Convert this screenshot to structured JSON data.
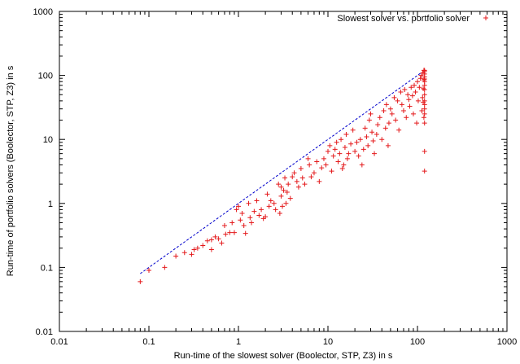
{
  "chart_data": {
    "type": "scatter",
    "title": "",
    "xlabel": "Run-time of the slowest solver (Boolector, STP, Z3) in s",
    "ylabel": "Run-time of portfolio solvers (Boolector, STP, Z3) in s",
    "xscale": "log",
    "yscale": "log",
    "xlim": [
      0.01,
      1000
    ],
    "ylim": [
      0.01,
      1000
    ],
    "x_ticks": [
      "0.01",
      "0.1",
      "1",
      "10",
      "100",
      "1000"
    ],
    "y_ticks": [
      "0.01",
      "0.1",
      "1",
      "10",
      "100",
      "1000"
    ],
    "grid": false,
    "legend": {
      "position": "top-right",
      "entries": [
        "Slowest solver vs. portfolio solver"
      ]
    },
    "colors": {
      "points": "#e41a1c",
      "reference_line": "#0000cc"
    },
    "reference_line": {
      "style": "dashed",
      "from": [
        0.08,
        0.08
      ],
      "to": [
        110,
        110
      ]
    },
    "series": [
      {
        "name": "Slowest solver vs. portfolio solver",
        "marker": "+",
        "points": [
          [
            0.08,
            0.06
          ],
          [
            0.1,
            0.09
          ],
          [
            0.15,
            0.1
          ],
          [
            0.2,
            0.15
          ],
          [
            0.25,
            0.17
          ],
          [
            0.3,
            0.16
          ],
          [
            0.32,
            0.19
          ],
          [
            0.35,
            0.2
          ],
          [
            0.4,
            0.22
          ],
          [
            0.45,
            0.26
          ],
          [
            0.5,
            0.19
          ],
          [
            0.5,
            0.27
          ],
          [
            0.55,
            0.3
          ],
          [
            0.6,
            0.28
          ],
          [
            0.65,
            0.24
          ],
          [
            0.7,
            0.45
          ],
          [
            0.72,
            0.33
          ],
          [
            0.8,
            0.35
          ],
          [
            0.85,
            0.5
          ],
          [
            0.9,
            0.35
          ],
          [
            0.95,
            0.8
          ],
          [
            1.0,
            0.9
          ],
          [
            1.05,
            0.55
          ],
          [
            1.1,
            0.7
          ],
          [
            1.15,
            0.45
          ],
          [
            1.2,
            0.34
          ],
          [
            1.3,
            1.0
          ],
          [
            1.35,
            0.6
          ],
          [
            1.4,
            0.5
          ],
          [
            1.5,
            0.75
          ],
          [
            1.6,
            1.1
          ],
          [
            1.7,
            0.65
          ],
          [
            1.8,
            0.8
          ],
          [
            1.9,
            0.58
          ],
          [
            2.0,
            0.62
          ],
          [
            2.1,
            1.4
          ],
          [
            2.2,
            0.9
          ],
          [
            2.3,
            1.1
          ],
          [
            2.5,
            1.0
          ],
          [
            2.6,
            0.8
          ],
          [
            2.8,
            2.0
          ],
          [
            2.9,
            0.7
          ],
          [
            3.0,
            1.3
          ],
          [
            3.0,
            1.8
          ],
          [
            3.1,
            0.9
          ],
          [
            3.2,
            1.6
          ],
          [
            3.3,
            2.5
          ],
          [
            3.4,
            1.0
          ],
          [
            3.5,
            1.5
          ],
          [
            3.6,
            2.0
          ],
          [
            3.8,
            1.2
          ],
          [
            4.0,
            2.6
          ],
          [
            4.2,
            3.0
          ],
          [
            4.5,
            2.2
          ],
          [
            4.7,
            1.8
          ],
          [
            5.0,
            3.5
          ],
          [
            5.2,
            2.5
          ],
          [
            5.5,
            2.0
          ],
          [
            6.0,
            5.0
          ],
          [
            6.2,
            4.0
          ],
          [
            6.5,
            2.6
          ],
          [
            7.0,
            3.0
          ],
          [
            7.5,
            4.5
          ],
          [
            8.0,
            2.2
          ],
          [
            8.5,
            3.6
          ],
          [
            9.0,
            5.0
          ],
          [
            9.5,
            4.0
          ],
          [
            10,
            6.5
          ],
          [
            10.5,
            8.0
          ],
          [
            11,
            3.2
          ],
          [
            11.5,
            5.5
          ],
          [
            12,
            7.0
          ],
          [
            12.5,
            9.0
          ],
          [
            13,
            4.5
          ],
          [
            13.5,
            6.0
          ],
          [
            14,
            10.0
          ],
          [
            14.5,
            3.5
          ],
          [
            15,
            4.0
          ],
          [
            15.5,
            7.5
          ],
          [
            16,
            12.0
          ],
          [
            16.5,
            5.0
          ],
          [
            17,
            6.0
          ],
          [
            18,
            8.5
          ],
          [
            19,
            14.0
          ],
          [
            20,
            6.5
          ],
          [
            21,
            9.0
          ],
          [
            22,
            5.5
          ],
          [
            23,
            10.0
          ],
          [
            24,
            4.0
          ],
          [
            25,
            7.0
          ],
          [
            26,
            15.0
          ],
          [
            27,
            11.0
          ],
          [
            28,
            8.0
          ],
          [
            29,
            20.0
          ],
          [
            30,
            25.0
          ],
          [
            31,
            13.0
          ],
          [
            32,
            9.5
          ],
          [
            33,
            6.0
          ],
          [
            35,
            12.0
          ],
          [
            36,
            17.0
          ],
          [
            38,
            22.0
          ],
          [
            40,
            10.0
          ],
          [
            42,
            28.0
          ],
          [
            44,
            15.0
          ],
          [
            45,
            35.0
          ],
          [
            47,
            8.0
          ],
          [
            48,
            18.0
          ],
          [
            50,
            30.0
          ],
          [
            52,
            25.0
          ],
          [
            55,
            45.0
          ],
          [
            57,
            20.0
          ],
          [
            60,
            40.0
          ],
          [
            62,
            14.0
          ],
          [
            65,
            55.0
          ],
          [
            67,
            35.0
          ],
          [
            70,
            28.0
          ],
          [
            72,
            60.0
          ],
          [
            75,
            22.0
          ],
          [
            78,
            50.0
          ],
          [
            80,
            42.0
          ],
          [
            82,
            33.0
          ],
          [
            85,
            65.0
          ],
          [
            88,
            48.0
          ],
          [
            90,
            25.0
          ],
          [
            92,
            70.0
          ],
          [
            95,
            55.0
          ],
          [
            98,
            18.0
          ],
          [
            100,
            80.0
          ],
          [
            102,
            40.0
          ],
          [
            105,
            65.0
          ],
          [
            108,
            90.0
          ],
          [
            110,
            100.0
          ],
          [
            115,
            110.0
          ],
          [
            118,
            120.0
          ],
          [
            120,
            120.0
          ],
          [
            120,
            115.0
          ],
          [
            120,
            105.0
          ],
          [
            120,
            95.0
          ],
          [
            120,
            88.0
          ],
          [
            120,
            80.0
          ],
          [
            120,
            70.0
          ],
          [
            120,
            60.0
          ],
          [
            120,
            50.0
          ],
          [
            120,
            40.0
          ],
          [
            120,
            35.0
          ],
          [
            120,
            30.0
          ],
          [
            120,
            25.0
          ],
          [
            120,
            18.0
          ],
          [
            120,
            6.5
          ],
          [
            120,
            3.2
          ],
          [
            118,
            85.0
          ],
          [
            116,
            62.0
          ],
          [
            114,
            45.0
          ],
          [
            112,
            28.0
          ],
          [
            118,
            22.0
          ],
          [
            116,
            38.0
          ]
        ]
      }
    ]
  }
}
